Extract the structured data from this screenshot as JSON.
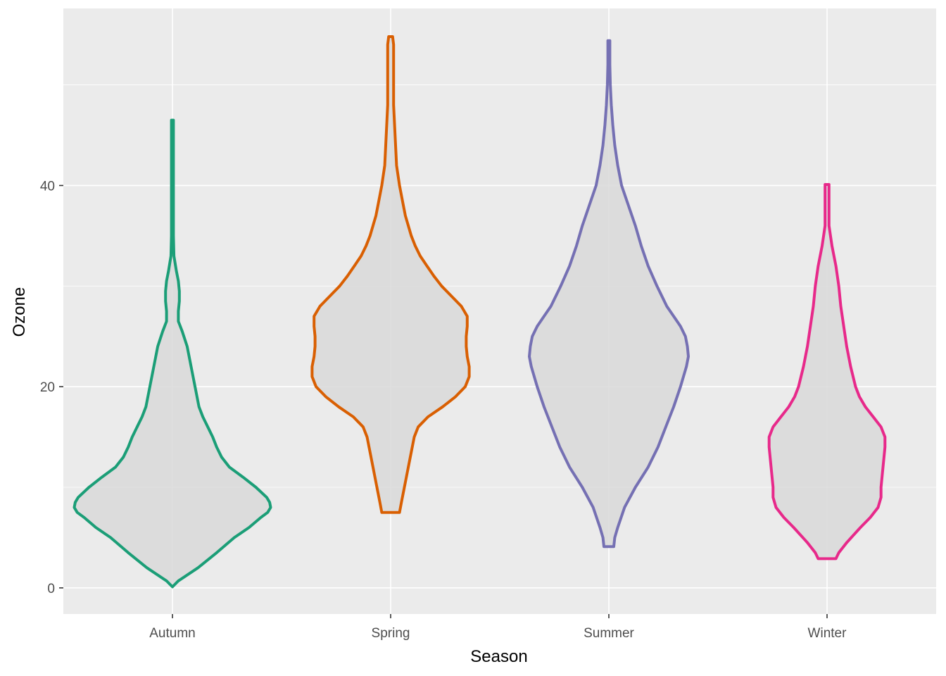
{
  "chart_data": {
    "type": "violin",
    "title": "",
    "xlabel": "Season",
    "ylabel": "Ozone",
    "categories": [
      "Autumn",
      "Spring",
      "Summer",
      "Winter"
    ],
    "ylim": [
      -2.6,
      57.6
    ],
    "yticks": [
      0,
      20,
      40
    ],
    "grid": true,
    "legend": "none",
    "panel_background": "#EBEBEB",
    "grid_color": "#FFFFFF",
    "violin_fill": "#D9D9D9",
    "series": [
      {
        "category": "Autumn",
        "color": "#1B9E77",
        "min": 0.1,
        "max": 46.5,
        "profile": [
          [
            0.1,
            0.0
          ],
          [
            0.7,
            0.06
          ],
          [
            2.0,
            0.26
          ],
          [
            3.5,
            0.45
          ],
          [
            5.0,
            0.63
          ],
          [
            6.0,
            0.78
          ],
          [
            7.0,
            0.9
          ],
          [
            7.5,
            0.97
          ],
          [
            8.0,
            1.0
          ],
          [
            8.5,
            0.99
          ],
          [
            9.0,
            0.96
          ],
          [
            10.0,
            0.85
          ],
          [
            11.0,
            0.72
          ],
          [
            12.0,
            0.58
          ],
          [
            13.0,
            0.5
          ],
          [
            14.0,
            0.45
          ],
          [
            15.0,
            0.41
          ],
          [
            16.0,
            0.36
          ],
          [
            17.0,
            0.31
          ],
          [
            18.0,
            0.27
          ],
          [
            20.0,
            0.23
          ],
          [
            22.0,
            0.19
          ],
          [
            24.0,
            0.15
          ],
          [
            25.5,
            0.1
          ],
          [
            26.5,
            0.06
          ],
          [
            27.5,
            0.06
          ],
          [
            28.5,
            0.07
          ],
          [
            29.5,
            0.07
          ],
          [
            30.5,
            0.06
          ],
          [
            31.5,
            0.04
          ],
          [
            33.0,
            0.015
          ],
          [
            35.0,
            0.01
          ],
          [
            40.0,
            0.01
          ],
          [
            46.5,
            0.01
          ]
        ]
      },
      {
        "category": "Spring",
        "color": "#D95F02",
        "min": 7.5,
        "max": 54.8,
        "profile": [
          [
            7.5,
            0.09
          ],
          [
            8.5,
            0.11
          ],
          [
            10.0,
            0.14
          ],
          [
            12.0,
            0.18
          ],
          [
            14.0,
            0.22
          ],
          [
            15.0,
            0.24
          ],
          [
            16.0,
            0.28
          ],
          [
            17.0,
            0.38
          ],
          [
            18.0,
            0.53
          ],
          [
            19.0,
            0.66
          ],
          [
            20.0,
            0.76
          ],
          [
            21.0,
            0.8
          ],
          [
            22.0,
            0.8
          ],
          [
            23.0,
            0.78
          ],
          [
            24.0,
            0.77
          ],
          [
            25.0,
            0.77
          ],
          [
            26.0,
            0.78
          ],
          [
            27.0,
            0.78
          ],
          [
            28.0,
            0.72
          ],
          [
            29.0,
            0.62
          ],
          [
            30.0,
            0.52
          ],
          [
            31.0,
            0.44
          ],
          [
            32.0,
            0.37
          ],
          [
            33.0,
            0.3
          ],
          [
            34.0,
            0.25
          ],
          [
            35.0,
            0.21
          ],
          [
            36.0,
            0.18
          ],
          [
            37.0,
            0.15
          ],
          [
            38.0,
            0.13
          ],
          [
            40.0,
            0.09
          ],
          [
            42.0,
            0.06
          ],
          [
            44.0,
            0.05
          ],
          [
            46.0,
            0.04
          ],
          [
            48.0,
            0.03
          ],
          [
            50.0,
            0.03
          ],
          [
            52.0,
            0.03
          ],
          [
            54.0,
            0.03
          ],
          [
            54.8,
            0.02
          ]
        ]
      },
      {
        "category": "Summer",
        "color": "#7570B3",
        "min": 4.1,
        "max": 54.4,
        "profile": [
          [
            4.1,
            0.05
          ],
          [
            5.0,
            0.06
          ],
          [
            6.0,
            0.09
          ],
          [
            8.0,
            0.16
          ],
          [
            10.0,
            0.27
          ],
          [
            12.0,
            0.4
          ],
          [
            14.0,
            0.5
          ],
          [
            16.0,
            0.58
          ],
          [
            18.0,
            0.66
          ],
          [
            20.0,
            0.73
          ],
          [
            22.0,
            0.79
          ],
          [
            23.0,
            0.81
          ],
          [
            24.0,
            0.8
          ],
          [
            25.0,
            0.78
          ],
          [
            26.0,
            0.73
          ],
          [
            27.0,
            0.66
          ],
          [
            28.0,
            0.59
          ],
          [
            30.0,
            0.49
          ],
          [
            32.0,
            0.4
          ],
          [
            34.0,
            0.33
          ],
          [
            36.0,
            0.27
          ],
          [
            38.0,
            0.2
          ],
          [
            40.0,
            0.13
          ],
          [
            42.0,
            0.09
          ],
          [
            44.0,
            0.06
          ],
          [
            46.0,
            0.04
          ],
          [
            48.0,
            0.025
          ],
          [
            50.0,
            0.015
          ],
          [
            52.0,
            0.01
          ],
          [
            54.4,
            0.01
          ]
        ]
      },
      {
        "category": "Winter",
        "color": "#E7298A",
        "min": 2.9,
        "max": 40.1,
        "profile": [
          [
            2.9,
            0.09
          ],
          [
            3.5,
            0.12
          ],
          [
            4.5,
            0.2
          ],
          [
            6.0,
            0.34
          ],
          [
            7.0,
            0.44
          ],
          [
            8.0,
            0.52
          ],
          [
            9.0,
            0.55
          ],
          [
            10.0,
            0.55
          ],
          [
            12.0,
            0.57
          ],
          [
            14.0,
            0.59
          ],
          [
            15.0,
            0.59
          ],
          [
            16.0,
            0.55
          ],
          [
            17.0,
            0.47
          ],
          [
            18.0,
            0.39
          ],
          [
            19.0,
            0.33
          ],
          [
            20.0,
            0.29
          ],
          [
            22.0,
            0.24
          ],
          [
            24.0,
            0.2
          ],
          [
            26.0,
            0.17
          ],
          [
            28.0,
            0.14
          ],
          [
            30.0,
            0.12
          ],
          [
            32.0,
            0.09
          ],
          [
            34.0,
            0.05
          ],
          [
            35.0,
            0.035
          ],
          [
            36.0,
            0.02
          ],
          [
            38.0,
            0.02
          ],
          [
            40.1,
            0.02
          ]
        ]
      }
    ]
  }
}
